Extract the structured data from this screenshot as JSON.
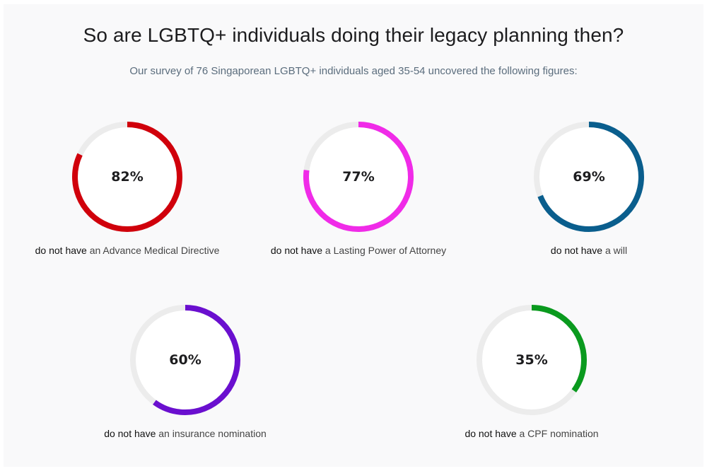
{
  "title": "So are LGBTQ+ individuals doing their legacy planning then?",
  "subtitle": "Our survey of 76 Singaporean LGBTQ+ individuals aged 35-54 uncovered the following figures:",
  "colors": {
    "track": "#ececec",
    "inner": "#ffffff"
  },
  "chart_data": [
    {
      "type": "pie",
      "value": 82,
      "label": "82%",
      "color": "#d0000b",
      "caption_bold": "do not have",
      "caption_rest": " an Advance Medical Directive"
    },
    {
      "type": "pie",
      "value": 77,
      "label": "77%",
      "color": "#f02be8",
      "caption_bold": "do not have",
      "caption_rest": " a Lasting Power of Attorney"
    },
    {
      "type": "pie",
      "value": 69,
      "label": "69%",
      "color": "#0a5e8d",
      "caption_bold": "do not have",
      "caption_rest": " a will"
    },
    {
      "type": "pie",
      "value": 60,
      "label": "60%",
      "color": "#6a0fcf",
      "caption_bold": "do not have",
      "caption_rest": " an insurance nomination"
    },
    {
      "type": "pie",
      "value": 35,
      "label": "35%",
      "color": "#0a9a1e",
      "caption_bold": "do not have",
      "caption_rest": " a CPF nomination"
    }
  ]
}
